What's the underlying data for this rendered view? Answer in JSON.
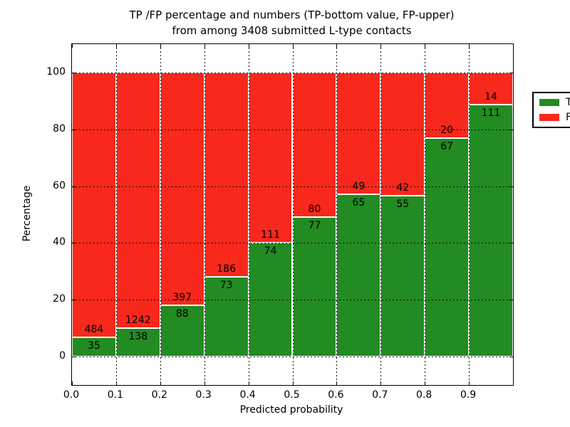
{
  "title": {
    "line1": "TP /FP percentage and numbers (TP-bottom value, FP-upper)",
    "line2": "from among 3408 submitted L-type contacts"
  },
  "colors": {
    "tp_green": "#228b22",
    "fp_red": "#f8281c",
    "frame": "#000000",
    "grid": "#111111",
    "bar_edge": "#ffffff"
  },
  "legend": {
    "items": [
      {
        "label": "TP",
        "color": "#228b22"
      },
      {
        "label": "FP",
        "color": "#f8281c"
      }
    ]
  },
  "chart_data": {
    "type": "bar",
    "stacked": true,
    "normalized_to_percent": 100,
    "title": "TP /FP percentage and numbers (TP-bottom value, FP-upper)\nfrom among 3408 submitted L-type contacts",
    "xlabel": "Predicted probability",
    "ylabel": "Percentage",
    "total_contacts": 3408,
    "bin_starts": [
      0.0,
      0.1,
      0.2,
      0.3,
      0.4,
      0.5,
      0.6,
      0.7,
      0.8,
      0.9
    ],
    "bin_width": 0.1,
    "series": [
      {
        "name": "TP",
        "position": "bottom",
        "color": "#228b22",
        "counts": [
          35,
          138,
          88,
          73,
          74,
          77,
          65,
          55,
          67,
          111
        ]
      },
      {
        "name": "FP",
        "position": "top",
        "color": "#f8281c",
        "counts": [
          484,
          1242,
          397,
          186,
          111,
          80,
          49,
          42,
          20,
          14
        ]
      }
    ],
    "tp_percent": [
      6.74,
      10.0,
      18.14,
      28.19,
      40.0,
      49.04,
      57.02,
      56.7,
      77.01,
      88.8
    ],
    "xticks": [
      "0.0",
      "0.1",
      "0.2",
      "0.3",
      "0.4",
      "0.5",
      "0.6",
      "0.7",
      "0.8",
      "0.9"
    ],
    "yticks": [
      0,
      20,
      40,
      60,
      80,
      100
    ],
    "xlim": [
      0.0,
      1.0
    ],
    "ylim": [
      -10,
      110
    ],
    "grid": {
      "on": true,
      "style": "dotted",
      "color": "black",
      "axes": "both"
    },
    "legend_position": "upper right",
    "bar_edge_color": "white",
    "label_note": "TP count printed below TP/FP boundary, FP count printed above boundary"
  }
}
